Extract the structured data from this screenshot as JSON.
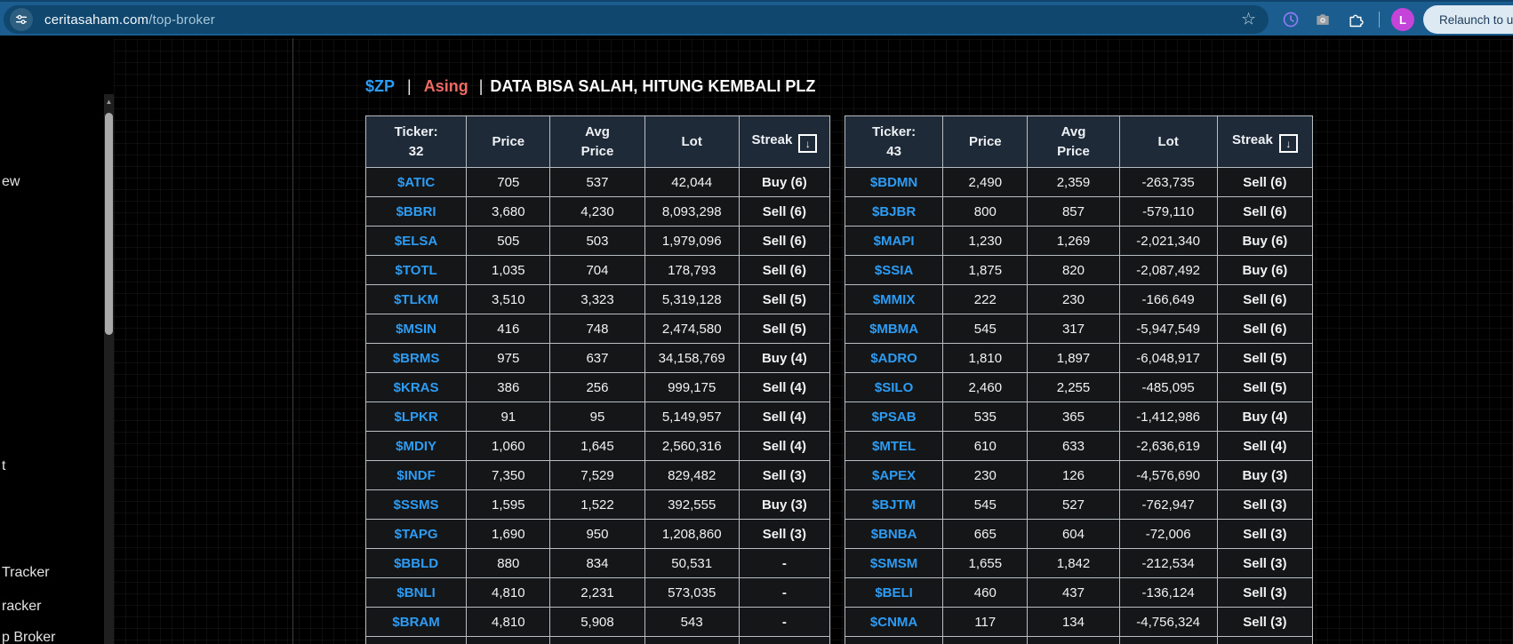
{
  "browser": {
    "url": {
      "host": "ceritasaham.com",
      "path": "/top-broker"
    },
    "relaunch_label": "Relaunch to up",
    "avatar_letter": "L"
  },
  "sidebar": {
    "fragments": [
      {
        "text": "ew"
      },
      {
        "text": "t"
      },
      {
        "text": "Tracker"
      },
      {
        "text": "racker"
      },
      {
        "text": "p Broker"
      }
    ]
  },
  "title": {
    "ticker": "$ZP",
    "sep": "|",
    "mode": "Asing",
    "note": "DATA BISA SALAH, HITUNG KEMBALI PLZ"
  },
  "colors": {
    "ticker_blue": "#2d9cf4",
    "buy_green": "#4ccb5c",
    "sell_red": "#ef5350",
    "header_bg": "#1f2a38",
    "cell_bg": "#151618",
    "chrome_blue": "#1c5d8f",
    "omnibox_blue": "#0f476e",
    "avatar_magenta": "#c443d8"
  },
  "tables": [
    {
      "header": {
        "ticker_label": "Ticker:",
        "ticker_count": "32",
        "price": "Price",
        "avg_line1": "Avg",
        "avg_line2": "Price",
        "lot": "Lot",
        "streak": "Streak",
        "sort_icon": "↓"
      },
      "rows": [
        {
          "ticker": "$ATIC",
          "price": "705",
          "avg": "537",
          "avg_dir": "g",
          "lot": "42,044",
          "streak": "Buy (6)",
          "streak_dir": "g"
        },
        {
          "ticker": "$BBRI",
          "price": "3,680",
          "avg": "4,230",
          "avg_dir": "r",
          "lot": "8,093,298",
          "streak": "Sell (6)",
          "streak_dir": "r"
        },
        {
          "ticker": "$ELSA",
          "price": "505",
          "avg": "503",
          "avg_dir": "g",
          "lot": "1,979,096",
          "streak": "Sell (6)",
          "streak_dir": "r"
        },
        {
          "ticker": "$TOTL",
          "price": "1,035",
          "avg": "704",
          "avg_dir": "g",
          "lot": "178,793",
          "streak": "Sell (6)",
          "streak_dir": "r"
        },
        {
          "ticker": "$TLKM",
          "price": "3,510",
          "avg": "3,323",
          "avg_dir": "g",
          "lot": "5,319,128",
          "streak": "Sell (5)",
          "streak_dir": "r"
        },
        {
          "ticker": "$MSIN",
          "price": "416",
          "avg": "748",
          "avg_dir": "r",
          "lot": "2,474,580",
          "streak": "Sell (5)",
          "streak_dir": "r"
        },
        {
          "ticker": "$BRMS",
          "price": "975",
          "avg": "637",
          "avg_dir": "g",
          "lot": "34,158,769",
          "streak": "Buy (4)",
          "streak_dir": "g"
        },
        {
          "ticker": "$KRAS",
          "price": "386",
          "avg": "256",
          "avg_dir": "g",
          "lot": "999,175",
          "streak": "Sell (4)",
          "streak_dir": "r"
        },
        {
          "ticker": "$LPKR",
          "price": "91",
          "avg": "95",
          "avg_dir": "r",
          "lot": "5,149,957",
          "streak": "Sell (4)",
          "streak_dir": "r"
        },
        {
          "ticker": "$MDIY",
          "price": "1,060",
          "avg": "1,645",
          "avg_dir": "r",
          "lot": "2,560,316",
          "streak": "Sell (4)",
          "streak_dir": "r"
        },
        {
          "ticker": "$INDF",
          "price": "7,350",
          "avg": "7,529",
          "avg_dir": "r",
          "lot": "829,482",
          "streak": "Sell (3)",
          "streak_dir": "r"
        },
        {
          "ticker": "$SSMS",
          "price": "1,595",
          "avg": "1,522",
          "avg_dir": "g",
          "lot": "392,555",
          "streak": "Buy (3)",
          "streak_dir": "g"
        },
        {
          "ticker": "$TAPG",
          "price": "1,690",
          "avg": "950",
          "avg_dir": "g",
          "lot": "1,208,860",
          "streak": "Sell (3)",
          "streak_dir": "r"
        },
        {
          "ticker": "$BBLD",
          "price": "880",
          "avg": "834",
          "avg_dir": "g",
          "lot": "50,531",
          "streak": "-",
          "streak_dir": "none"
        },
        {
          "ticker": "$BNLI",
          "price": "4,810",
          "avg": "2,231",
          "avg_dir": "g",
          "lot": "573,035",
          "streak": "-",
          "streak_dir": "none"
        },
        {
          "ticker": "$BRAM",
          "price": "4,810",
          "avg": "5,908",
          "avg_dir": "r",
          "lot": "543",
          "streak": "-",
          "streak_dir": "none"
        }
      ]
    },
    {
      "header": {
        "ticker_label": "Ticker:",
        "ticker_count": "43",
        "price": "Price",
        "avg_line1": "Avg",
        "avg_line2": "Price",
        "lot": "Lot",
        "streak": "Streak",
        "sort_icon": "↓"
      },
      "rows": [
        {
          "ticker": "$BDMN",
          "price": "2,490",
          "avg": "2,359",
          "avg_dir": "g",
          "lot": "-263,735",
          "streak": "Sell (6)",
          "streak_dir": "r"
        },
        {
          "ticker": "$BJBR",
          "price": "800",
          "avg": "857",
          "avg_dir": "r",
          "lot": "-579,110",
          "streak": "Sell (6)",
          "streak_dir": "r"
        },
        {
          "ticker": "$MAPI",
          "price": "1,230",
          "avg": "1,269",
          "avg_dir": "r",
          "lot": "-2,021,340",
          "streak": "Buy (6)",
          "streak_dir": "g"
        },
        {
          "ticker": "$SSIA",
          "price": "1,875",
          "avg": "820",
          "avg_dir": "g",
          "lot": "-2,087,492",
          "streak": "Buy (6)",
          "streak_dir": "g"
        },
        {
          "ticker": "$MMIX",
          "price": "222",
          "avg": "230",
          "avg_dir": "r",
          "lot": "-166,649",
          "streak": "Sell (6)",
          "streak_dir": "r"
        },
        {
          "ticker": "$MBMA",
          "price": "545",
          "avg": "317",
          "avg_dir": "g",
          "lot": "-5,947,549",
          "streak": "Sell (6)",
          "streak_dir": "r"
        },
        {
          "ticker": "$ADRO",
          "price": "1,810",
          "avg": "1,897",
          "avg_dir": "r",
          "lot": "-6,048,917",
          "streak": "Sell (5)",
          "streak_dir": "r"
        },
        {
          "ticker": "$SILO",
          "price": "2,460",
          "avg": "2,255",
          "avg_dir": "g",
          "lot": "-485,095",
          "streak": "Sell (5)",
          "streak_dir": "r"
        },
        {
          "ticker": "$PSAB",
          "price": "535",
          "avg": "365",
          "avg_dir": "g",
          "lot": "-1,412,986",
          "streak": "Buy (4)",
          "streak_dir": "g"
        },
        {
          "ticker": "$MTEL",
          "price": "610",
          "avg": "633",
          "avg_dir": "r",
          "lot": "-2,636,619",
          "streak": "Sell (4)",
          "streak_dir": "r"
        },
        {
          "ticker": "$APEX",
          "price": "230",
          "avg": "126",
          "avg_dir": "g",
          "lot": "-4,576,690",
          "streak": "Buy (3)",
          "streak_dir": "g"
        },
        {
          "ticker": "$BJTM",
          "price": "545",
          "avg": "527",
          "avg_dir": "g",
          "lot": "-762,947",
          "streak": "Sell (3)",
          "streak_dir": "r"
        },
        {
          "ticker": "$BNBA",
          "price": "665",
          "avg": "604",
          "avg_dir": "g",
          "lot": "-72,006",
          "streak": "Sell (3)",
          "streak_dir": "r"
        },
        {
          "ticker": "$SMSM",
          "price": "1,655",
          "avg": "1,842",
          "avg_dir": "r",
          "lot": "-212,534",
          "streak": "Sell (3)",
          "streak_dir": "r"
        },
        {
          "ticker": "$BELI",
          "price": "460",
          "avg": "437",
          "avg_dir": "g",
          "lot": "-136,124",
          "streak": "Sell (3)",
          "streak_dir": "r"
        },
        {
          "ticker": "$CNMA",
          "price": "117",
          "avg": "134",
          "avg_dir": "r",
          "lot": "-4,756,324",
          "streak": "Sell (3)",
          "streak_dir": "r"
        }
      ]
    }
  ]
}
